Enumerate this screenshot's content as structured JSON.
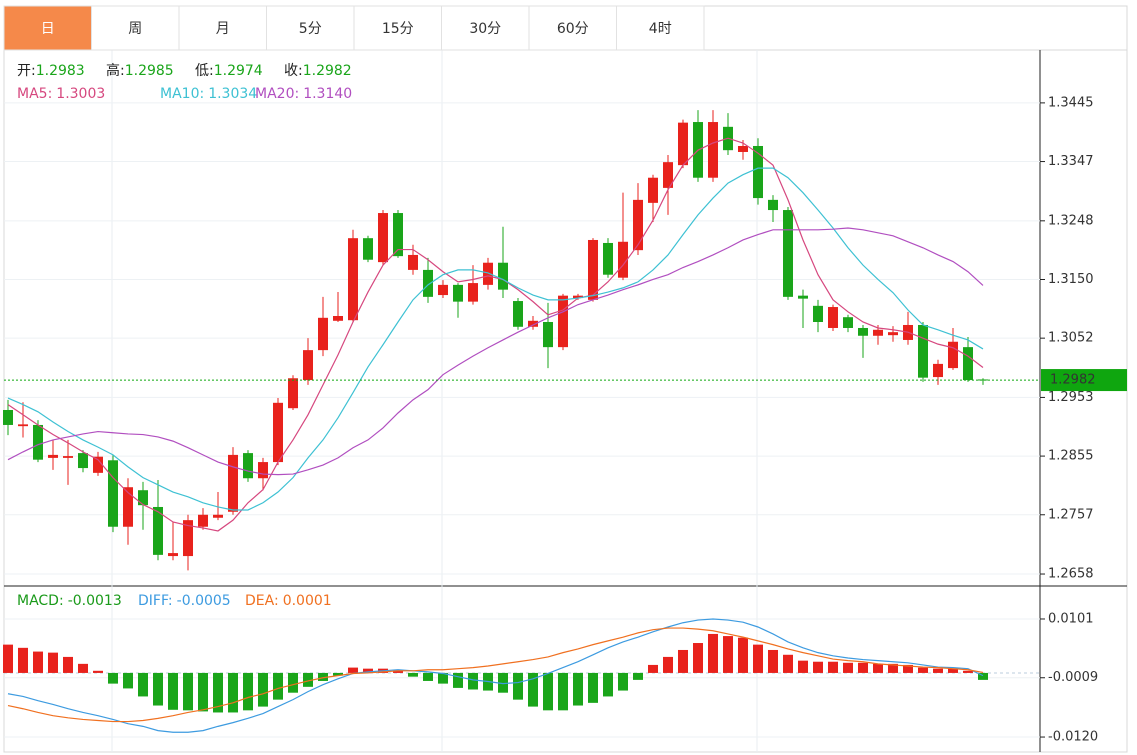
{
  "tabs": [
    "日",
    "周",
    "月",
    "5分",
    "15分",
    "30分",
    "60分",
    "4时"
  ],
  "active_tab": 0,
  "chart_data": [
    {
      "type": "candlestick",
      "up_color": "#e8221c",
      "down_color": "#1aa51a",
      "readout_color": "#1aa51a",
      "grid": true,
      "readout": [
        {
          "label": "开:",
          "value": "1.2983"
        },
        {
          "label": "高:",
          "value": "1.2985"
        },
        {
          "label": "低:",
          "value": "1.2974"
        },
        {
          "label": "收:",
          "value": "1.2982"
        }
      ],
      "last_price": 1.2982,
      "last_price_color": "#0fa60f",
      "ylim": [
        1.2638,
        1.353
      ],
      "yticks": [
        {
          "value": 1.3445,
          "label": "1.3445"
        },
        {
          "value": 1.3347,
          "label": "1.3347"
        },
        {
          "value": 1.3248,
          "label": "1.3248"
        },
        {
          "value": 1.315,
          "label": "1.3150"
        },
        {
          "value": 1.3052,
          "label": "1.3052"
        },
        {
          "value": 1.2953,
          "label": "1.2953"
        },
        {
          "value": 1.2855,
          "label": "1.2855"
        },
        {
          "value": 1.2757,
          "label": "1.2757"
        },
        {
          "value": 1.2658,
          "label": "1.2658"
        }
      ],
      "open": [
        1.2932,
        1.2905,
        1.2907,
        1.2852,
        1.2852,
        1.286,
        1.2827,
        1.2848,
        1.2737,
        1.2798,
        1.277,
        1.2688,
        1.2688,
        1.2737,
        1.2752,
        1.2762,
        1.286,
        1.2818,
        1.2845,
        1.2935,
        1.2982,
        1.3032,
        1.3081,
        1.3082,
        1.3219,
        1.3179,
        1.3261,
        1.3166,
        1.3166,
        1.3124,
        1.3141,
        1.3113,
        1.3141,
        1.3178,
        1.3114,
        1.3071,
        1.3079,
        1.3037,
        1.3119,
        1.3116,
        1.3211,
        1.3153,
        1.3199,
        1.3278,
        1.3303,
        1.3341,
        1.3413,
        1.332,
        1.3405,
        1.3363,
        1.3373,
        1.3283,
        1.3266,
        1.3123,
        1.3106,
        1.3069,
        1.3087,
        1.3069,
        1.3056,
        1.3057,
        1.3049,
        1.3074,
        1.2987,
        1.3002,
        1.3037,
        1.2983
      ],
      "high": [
        1.2949,
        1.2945,
        1.2915,
        1.2882,
        1.2882,
        1.2865,
        1.2862,
        1.2857,
        1.2818,
        1.2812,
        1.2815,
        1.2745,
        1.2757,
        1.2768,
        1.2795,
        1.287,
        1.2865,
        1.2852,
        1.2952,
        1.299,
        1.3052,
        1.3121,
        1.3129,
        1.3233,
        1.3223,
        1.3266,
        1.3266,
        1.3208,
        1.3186,
        1.3149,
        1.3144,
        1.3174,
        1.3186,
        1.3238,
        1.3119,
        1.3089,
        1.3111,
        1.3126,
        1.3126,
        1.3219,
        1.3219,
        1.3295,
        1.3311,
        1.3325,
        1.3358,
        1.3417,
        1.3433,
        1.3433,
        1.3428,
        1.3383,
        1.3386,
        1.3291,
        1.3271,
        1.3133,
        1.3116,
        1.3108,
        1.3091,
        1.3074,
        1.3074,
        1.3072,
        1.3096,
        1.3079,
        1.3016,
        1.3069,
        1.3054,
        1.2985
      ],
      "low": [
        1.289,
        1.2886,
        1.2845,
        1.2832,
        1.2807,
        1.2828,
        1.2822,
        1.2728,
        1.2707,
        1.2732,
        1.2681,
        1.2681,
        1.2664,
        1.2732,
        1.2748,
        1.2757,
        1.2812,
        1.2798,
        1.284,
        1.2932,
        1.2974,
        1.3022,
        1.3079,
        1.3079,
        1.3179,
        1.3174,
        1.3186,
        1.3158,
        1.3111,
        1.3119,
        1.3086,
        1.3108,
        1.3133,
        1.3119,
        1.3066,
        1.3066,
        1.3002,
        1.3032,
        1.3116,
        1.3113,
        1.3153,
        1.3149,
        1.3191,
        1.3246,
        1.3258,
        1.3336,
        1.3313,
        1.3313,
        1.3358,
        1.335,
        1.3275,
        1.3246,
        1.3116,
        1.3069,
        1.3062,
        1.3064,
        1.3062,
        1.3019,
        1.3041,
        1.3046,
        1.3041,
        1.2979,
        1.2974,
        1.2999,
        1.2979,
        1.2974
      ],
      "close": [
        1.2907,
        1.2908,
        1.2849,
        1.2857,
        1.2855,
        1.2835,
        1.2854,
        1.2737,
        1.2803,
        1.2773,
        1.269,
        1.2693,
        1.2748,
        1.2757,
        1.2757,
        1.2857,
        1.2818,
        1.2845,
        1.2944,
        1.2985,
        1.3032,
        1.3086,
        1.3089,
        1.3219,
        1.3183,
        1.3261,
        1.3189,
        1.3191,
        1.3121,
        1.3141,
        1.3113,
        1.3144,
        1.3178,
        1.3133,
        1.3071,
        1.3081,
        1.3037,
        1.3123,
        1.3123,
        1.3216,
        1.3158,
        1.3213,
        1.3283,
        1.332,
        1.3346,
        1.3412,
        1.332,
        1.3413,
        1.3366,
        1.3373,
        1.3286,
        1.3266,
        1.3121,
        1.3118,
        1.3079,
        1.3104,
        1.3069,
        1.3056,
        1.3066,
        1.3062,
        1.3074,
        1.2986,
        1.3009,
        1.3046,
        1.2982,
        1.2982
      ],
      "series": [
        {
          "name": "MA5:",
          "value_label": "1.3003",
          "color": "#d6487f",
          "values": [
            1.2941,
            1.2924,
            1.2907,
            1.2891,
            1.2877,
            1.2862,
            1.2849,
            1.2819,
            1.2794,
            1.2774,
            1.2762,
            1.2745,
            1.2739,
            1.2735,
            1.273,
            1.2748,
            1.2777,
            1.2799,
            1.2845,
            1.2882,
            1.2924,
            1.2974,
            1.3024,
            1.3079,
            1.3129,
            1.3174,
            1.32,
            1.32,
            1.3183,
            1.3163,
            1.3146,
            1.315,
            1.3156,
            1.315,
            1.3133,
            1.3113,
            1.3091,
            1.3099,
            1.3119,
            1.3124,
            1.3146,
            1.3174,
            1.3208,
            1.3249,
            1.33,
            1.3341,
            1.3366,
            1.3378,
            1.3386,
            1.3378,
            1.3361,
            1.3341,
            1.3283,
            1.3216,
            1.3158,
            1.3116,
            1.3096,
            1.3079,
            1.3069,
            1.3066,
            1.3062,
            1.3052,
            1.3042,
            1.3036,
            1.3022,
            1.3003
          ]
        },
        {
          "name": "MA10:",
          "value_label": "1.3034",
          "color": "#3ec1d3",
          "values": [
            1.2952,
            1.2941,
            1.2929,
            1.2912,
            1.2896,
            1.2882,
            1.287,
            1.2857,
            1.2837,
            1.2819,
            1.2807,
            1.2795,
            1.2787,
            1.2777,
            1.277,
            1.2765,
            1.2765,
            1.2777,
            1.2795,
            1.2819,
            1.2852,
            1.2882,
            1.2919,
            1.2961,
            1.3004,
            1.3041,
            1.3079,
            1.3116,
            1.3141,
            1.3158,
            1.3166,
            1.3166,
            1.3161,
            1.315,
            1.3136,
            1.3124,
            1.3116,
            1.3116,
            1.3119,
            1.3123,
            1.3129,
            1.3136,
            1.3146,
            1.3166,
            1.3191,
            1.3225,
            1.3258,
            1.3286,
            1.3311,
            1.3325,
            1.3336,
            1.3336,
            1.332,
            1.3295,
            1.3266,
            1.3236,
            1.3203,
            1.3174,
            1.315,
            1.3128,
            1.3099,
            1.3074,
            1.3066,
            1.3057,
            1.3049,
            1.3034
          ]
        },
        {
          "name": "MA20:",
          "value_label": "1.3140",
          "color": "#b14fc0",
          "values": [
            1.2849,
            1.2862,
            1.2874,
            1.2882,
            1.2887,
            1.2892,
            1.2896,
            1.2894,
            1.2892,
            1.2891,
            1.2887,
            1.288,
            1.2869,
            1.2857,
            1.2845,
            1.2837,
            1.283,
            1.2825,
            1.2824,
            1.2825,
            1.2832,
            1.284,
            1.2852,
            1.2869,
            1.2882,
            1.2902,
            1.2927,
            1.2949,
            1.2966,
            1.2991,
            1.3007,
            1.3022,
            1.3036,
            1.3049,
            1.3062,
            1.3074,
            1.3086,
            1.3096,
            1.3108,
            1.3116,
            1.3124,
            1.3133,
            1.3141,
            1.315,
            1.3158,
            1.317,
            1.318,
            1.3191,
            1.3203,
            1.3216,
            1.3225,
            1.3233,
            1.3233,
            1.3233,
            1.3233,
            1.3234,
            1.3236,
            1.3233,
            1.3228,
            1.3223,
            1.3213,
            1.3203,
            1.3191,
            1.318,
            1.3163,
            1.314
          ]
        }
      ]
    },
    {
      "type": "macd",
      "up_color": "#e8221c",
      "down_color": "#1aa51a",
      "grid": true,
      "ylim": [
        -0.0148,
        0.0159
      ],
      "yticks": [
        {
          "value": 0.0101,
          "label": "0.0101"
        },
        {
          "value": -0.0009,
          "label": "-0.0009"
        },
        {
          "value": -0.012,
          "label": "-0.0120"
        }
      ],
      "series": [
        {
          "name": "MACD:",
          "value_label": "-0.0013",
          "color": "#1a9a1a",
          "kind": "bar",
          "values": [
            0.0053,
            0.0047,
            0.004,
            0.0038,
            0.003,
            0.0017,
            0.0004,
            -0.002,
            -0.0029,
            -0.0044,
            -0.0061,
            -0.0069,
            -0.007,
            -0.0072,
            -0.0074,
            -0.0074,
            -0.007,
            -0.0063,
            -0.005,
            -0.0037,
            -0.0026,
            -0.0015,
            -0.0005,
            0.001,
            0.0008,
            0.0008,
            0.0004,
            -0.0007,
            -0.0015,
            -0.002,
            -0.0028,
            -0.0031,
            -0.0033,
            -0.0037,
            -0.005,
            -0.0063,
            -0.007,
            -0.007,
            -0.0061,
            -0.0056,
            -0.0044,
            -0.0033,
            -0.0013,
            0.0015,
            0.003,
            0.0043,
            0.0056,
            0.0073,
            0.0069,
            0.0066,
            0.0053,
            0.0043,
            0.0034,
            0.0023,
            0.0021,
            0.0021,
            0.0019,
            0.0019,
            0.0017,
            0.0017,
            0.0015,
            0.001,
            0.0008,
            0.0008,
            0.0004,
            -0.0013
          ]
        },
        {
          "name": "DIFF:",
          "value_label": "-0.0005",
          "color": "#3d9be0",
          "kind": "line",
          "values": [
            -0.0039,
            -0.0044,
            -0.0052,
            -0.0059,
            -0.0067,
            -0.0074,
            -0.008,
            -0.0087,
            -0.0095,
            -0.01,
            -0.0108,
            -0.0111,
            -0.0111,
            -0.0108,
            -0.01,
            -0.0093,
            -0.0085,
            -0.0076,
            -0.0063,
            -0.005,
            -0.0035,
            -0.0022,
            -0.0011,
            -0.0001,
            0.0002,
            0.0004,
            0.0006,
            0.0004,
            0.0002,
            -0.0001,
            -0.0007,
            -0.0013,
            -0.0016,
            -0.002,
            -0.0018,
            -0.0011,
            -0.0001,
            0.001,
            0.0021,
            0.0034,
            0.0047,
            0.0058,
            0.0067,
            0.0077,
            0.0086,
            0.0094,
            0.0099,
            0.0101,
            0.0099,
            0.0095,
            0.0086,
            0.0073,
            0.0058,
            0.0047,
            0.0038,
            0.0032,
            0.0028,
            0.0025,
            0.0023,
            0.0021,
            0.0019,
            0.0015,
            0.0011,
            0.001,
            0.0008,
            -0.0005
          ]
        },
        {
          "name": "DEA:",
          "value_label": "0.0001",
          "color": "#f07020",
          "kind": "line",
          "values": [
            -0.0061,
            -0.0067,
            -0.0074,
            -0.008,
            -0.0084,
            -0.0087,
            -0.0089,
            -0.0091,
            -0.0091,
            -0.0089,
            -0.0085,
            -0.008,
            -0.0074,
            -0.0069,
            -0.0063,
            -0.0056,
            -0.0046,
            -0.0039,
            -0.0029,
            -0.0022,
            -0.0015,
            -0.0009,
            -0.0005,
            -0.0001,
            0.0,
            0.0002,
            0.0004,
            0.0004,
            0.0006,
            0.0006,
            0.0008,
            0.001,
            0.0013,
            0.0017,
            0.0021,
            0.0025,
            0.003,
            0.0038,
            0.0045,
            0.0053,
            0.006,
            0.0067,
            0.0075,
            0.0081,
            0.0084,
            0.0084,
            0.0082,
            0.0079,
            0.0073,
            0.0067,
            0.006,
            0.0053,
            0.0045,
            0.0038,
            0.0032,
            0.0026,
            0.0023,
            0.0021,
            0.0017,
            0.0015,
            0.0013,
            0.0011,
            0.001,
            0.0008,
            0.0006,
            0.0001
          ]
        }
      ]
    }
  ]
}
